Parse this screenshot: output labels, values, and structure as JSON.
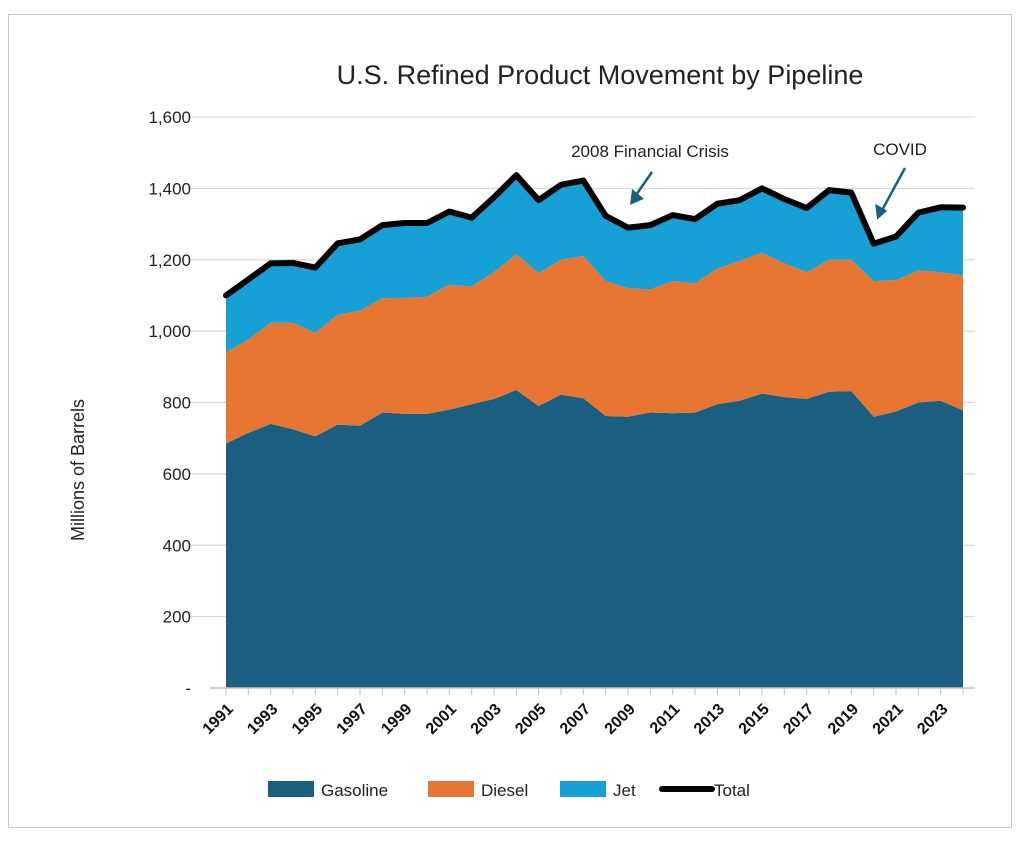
{
  "chart_data": {
    "type": "area",
    "title": "U.S. Refined Product Movement by Pipeline",
    "ylabel": "Millions of Barrels",
    "xlabel": "",
    "ylim": [
      0,
      1600
    ],
    "yticks": [
      {
        "value": 0,
        "label": "-"
      },
      {
        "value": 200,
        "label": "200"
      },
      {
        "value": 400,
        "label": "400"
      },
      {
        "value": 600,
        "label": "600"
      },
      {
        "value": 800,
        "label": "800"
      },
      {
        "value": 1000,
        "label": "1,000"
      },
      {
        "value": 1200,
        "label": "1,200"
      },
      {
        "value": 1400,
        "label": "1,400"
      },
      {
        "value": 1600,
        "label": "1,600"
      }
    ],
    "x": [
      1991,
      1992,
      1993,
      1994,
      1995,
      1996,
      1997,
      1998,
      1999,
      2000,
      2001,
      2002,
      2003,
      2004,
      2005,
      2006,
      2007,
      2008,
      2009,
      2010,
      2011,
      2012,
      2013,
      2014,
      2015,
      2016,
      2017,
      2018,
      2019,
      2020,
      2021,
      2022,
      2023,
      2024
    ],
    "xtick_labels": [
      "1991",
      "1993",
      "1995",
      "1997",
      "1999",
      "2001",
      "2003",
      "2005",
      "2007",
      "2009",
      "2011",
      "2013",
      "2015",
      "2017",
      "2019",
      "2021",
      "2023"
    ],
    "stacked": true,
    "grid": "horizontal",
    "legend_position": "bottom",
    "series": [
      {
        "name": "Gasoline",
        "color": "#1a5e80",
        "values": [
          685,
          715,
          740,
          725,
          705,
          738,
          735,
          772,
          768,
          768,
          780,
          795,
          810,
          835,
          790,
          822,
          812,
          762,
          760,
          772,
          770,
          772,
          795,
          805,
          825,
          815,
          810,
          830,
          832,
          760,
          775,
          800,
          805,
          778
        ]
      },
      {
        "name": "Diesel",
        "color": "#e77633",
        "values": [
          255,
          262,
          283,
          298,
          290,
          308,
          322,
          320,
          325,
          328,
          350,
          330,
          355,
          380,
          372,
          378,
          398,
          378,
          360,
          345,
          370,
          362,
          380,
          392,
          395,
          375,
          355,
          370,
          368,
          380,
          368,
          370,
          360,
          378
        ]
      },
      {
        "name": "Jet",
        "color": "#17a0d6",
        "values": [
          160,
          168,
          167,
          168,
          183,
          200,
          200,
          205,
          210,
          207,
          205,
          193,
          210,
          222,
          205,
          210,
          212,
          183,
          170,
          180,
          185,
          180,
          182,
          170,
          180,
          180,
          180,
          195,
          188,
          105,
          122,
          162,
          182,
          190
        ]
      }
    ],
    "line_series": {
      "name": "Total",
      "color": "#000000",
      "values": [
        1100,
        1145,
        1190,
        1191,
        1178,
        1246,
        1257,
        1297,
        1303,
        1303,
        1335,
        1318,
        1375,
        1437,
        1367,
        1410,
        1422,
        1323,
        1290,
        1297,
        1325,
        1314,
        1357,
        1367,
        1400,
        1370,
        1345,
        1395,
        1388,
        1245,
        1265,
        1332,
        1347,
        1346
      ]
    },
    "annotations": [
      {
        "text": "2008 Financial Crisis",
        "x": 2009,
        "y": 1320
      },
      {
        "text": "COVID",
        "x": 2020.2,
        "y": 1245
      }
    ]
  }
}
